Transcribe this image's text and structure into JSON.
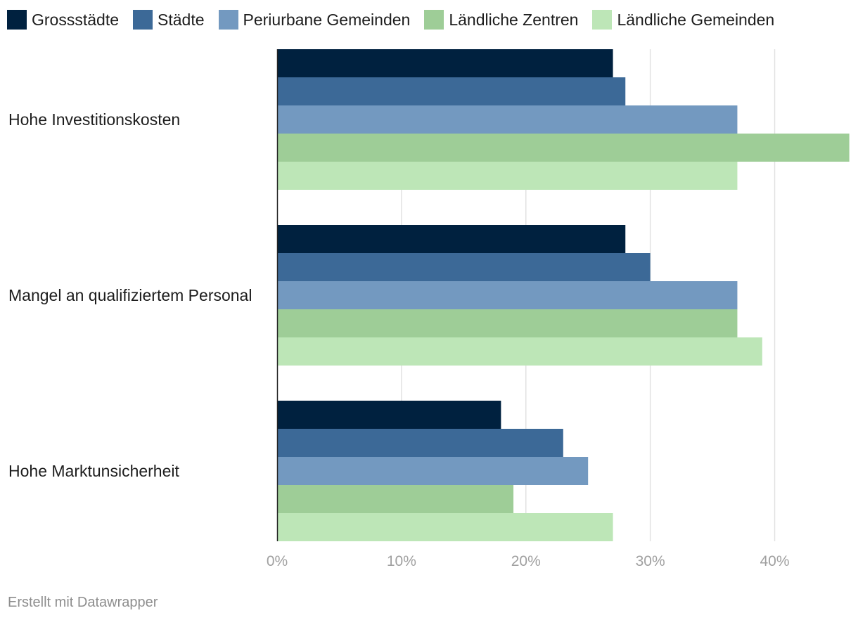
{
  "chart_data": {
    "type": "bar",
    "orientation": "horizontal",
    "categories": [
      "Hohe Investitionskosten",
      "Mangel an qualifiziertem Personal",
      "Hohe Marktunsicherheit"
    ],
    "series": [
      {
        "name": "Grossstädte",
        "color": "#00213f",
        "values": [
          27,
          28,
          18
        ]
      },
      {
        "name": "Städte",
        "color": "#3c6997",
        "values": [
          28,
          30,
          23
        ]
      },
      {
        "name": "Periurbane Gemeinden",
        "color": "#7399c0",
        "values": [
          37,
          37,
          25
        ]
      },
      {
        "name": "Ländliche Zentren",
        "color": "#9ecd97",
        "values": [
          46,
          37,
          19
        ]
      },
      {
        "name": "Ländliche Gemeinden",
        "color": "#bde6b7",
        "values": [
          37,
          39,
          27
        ]
      }
    ],
    "xlim": [
      0,
      46
    ],
    "xticks": [
      0,
      10,
      20,
      30,
      40
    ],
    "xtick_labels": [
      "0%",
      "10%",
      "20%",
      "30%",
      "40%"
    ],
    "grid": true,
    "legend_position": "top-left"
  },
  "footer": {
    "credit": "Erstellt mit Datawrapper"
  },
  "colors": {
    "gridline": "#e2e2e2",
    "tick_label": "#a0a0a0",
    "axis": "#222222",
    "category_label": "#1d1d1d"
  }
}
